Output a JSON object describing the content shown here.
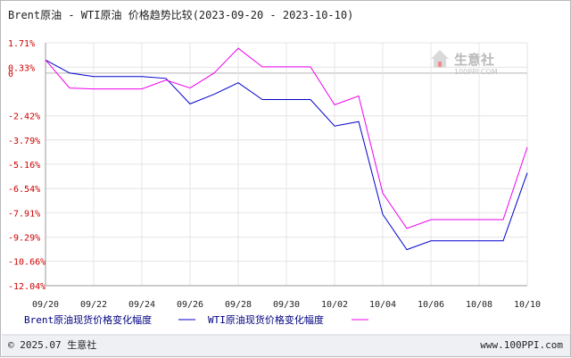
{
  "title": "Brent原油 - WTI原油 价格趋势比较(2023-09-20 - 2023-10-10)",
  "watermark": {
    "text_cn": "生意社",
    "text_en": "100PPI.COM"
  },
  "footer": {
    "copyright": "© 2025.07 生意社",
    "site": "www.100PPI.com"
  },
  "colors": {
    "brent": "#0000cc",
    "wti": "#ee00ee",
    "grid": "#e4e4e4",
    "zero_line": "#b5b5b5",
    "y_ticks": "#cc0000"
  },
  "chart_data": {
    "type": "line",
    "title": "Brent原油 - WTI原油 价格趋势比较(2023-09-20 - 2023-10-10)",
    "x": [
      "09/20",
      "09/21",
      "09/22",
      "09/23",
      "09/24",
      "09/25",
      "09/26",
      "09/27",
      "09/28",
      "09/29",
      "09/30",
      "10/01",
      "10/02",
      "10/03",
      "10/04",
      "10/05",
      "10/06",
      "10/07",
      "10/08",
      "10/09",
      "10/10"
    ],
    "x_tick_labels": [
      "09/20",
      "09/22",
      "09/24",
      "09/26",
      "09/28",
      "09/30",
      "10/02",
      "10/04",
      "10/06",
      "10/08",
      "10/10"
    ],
    "y_tick_labels": [
      "1.71%",
      "0.33%",
      "0",
      "-2.42%",
      "-3.79%",
      "-5.16%",
      "-6.54%",
      "-7.91%",
      "-9.29%",
      "-10.66%",
      "-12.04%"
    ],
    "y_ticks": [
      1.71,
      0.33,
      0,
      -2.42,
      -3.79,
      -5.16,
      -6.54,
      -7.91,
      -9.29,
      -10.66,
      -12.04
    ],
    "ylim": [
      -12.04,
      1.71
    ],
    "series": [
      {
        "name": "Brent原油现货价格变化幅度",
        "color": "#0000cc",
        "values": [
          0.74,
          0.0,
          -0.2,
          -0.2,
          -0.2,
          -0.3,
          -1.75,
          -1.2,
          -0.55,
          -1.5,
          -1.5,
          -1.5,
          -3.0,
          -2.75,
          -8.0,
          -10.0,
          -9.5,
          -9.5,
          -9.5,
          -9.5,
          -5.65
        ]
      },
      {
        "name": "WTI原油现货价格变化幅度",
        "color": "#ee00ee",
        "values": [
          0.74,
          -0.85,
          -0.9,
          -0.9,
          -0.9,
          -0.4,
          -0.85,
          0.0,
          1.4,
          0.35,
          0.35,
          0.35,
          -1.8,
          -1.3,
          -6.8,
          -8.8,
          -8.3,
          -8.3,
          -8.3,
          -8.3,
          -4.2
        ]
      }
    ],
    "grid": true,
    "legend": "bottom"
  }
}
